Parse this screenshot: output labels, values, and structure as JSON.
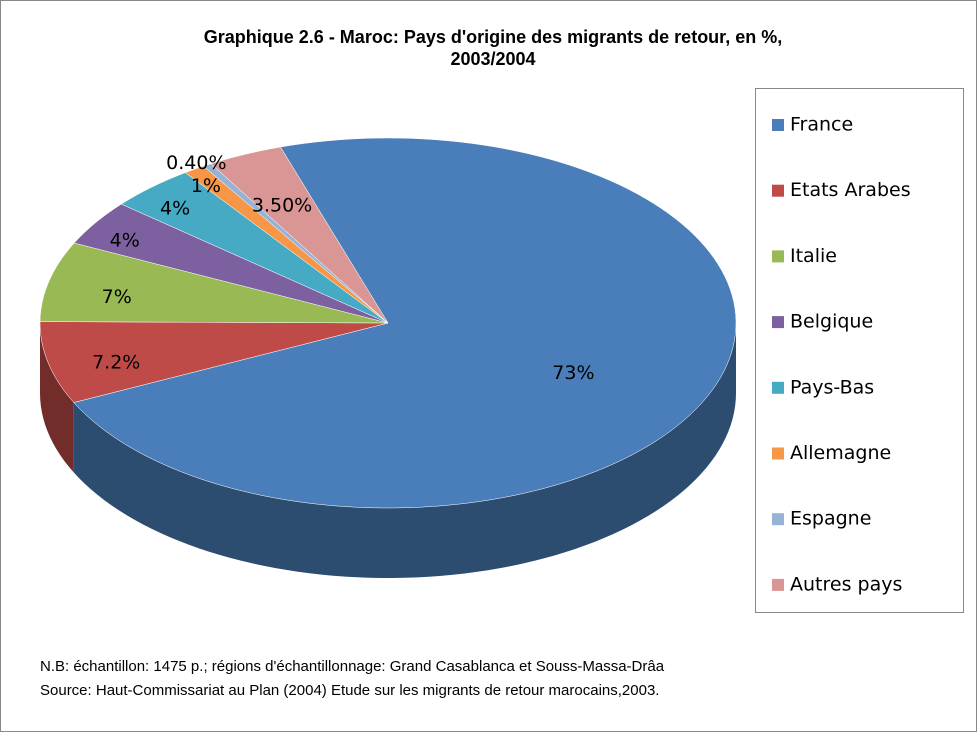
{
  "chart_data": {
    "type": "pie3d",
    "title": [
      "Graphique 2.6 - Maroc: Pays d'origine des migrants de retour, en %,",
      "2003/2004"
    ],
    "categories": [
      "France",
      "Etats Arabes",
      "Italie",
      "Belgique",
      "Pays-Bas",
      "Allemagne",
      "Espagne",
      "Autres pays"
    ],
    "values": [
      73,
      7.2,
      7,
      4,
      4,
      1,
      0.4,
      3.5
    ],
    "value_labels": [
      "73%",
      "7.2%",
      "7%",
      "4%",
      "4%",
      "1%",
      "0.40%",
      "3.50%"
    ],
    "colors": [
      "#4a7ebb",
      "#be4b48",
      "#98b954",
      "#7d60a0",
      "#46aac5",
      "#f79646",
      "#95b3d7",
      "#d99694"
    ],
    "legend": "right",
    "notes": [
      "N.B: échantillon: 1475 p.; régions d'échantillonnage: Grand Casablanca et Souss-Massa-Drâa",
      "Source: Haut-Commissariat au Plan (2004) Etude sur les migrants de retour marocains,2003."
    ]
  }
}
